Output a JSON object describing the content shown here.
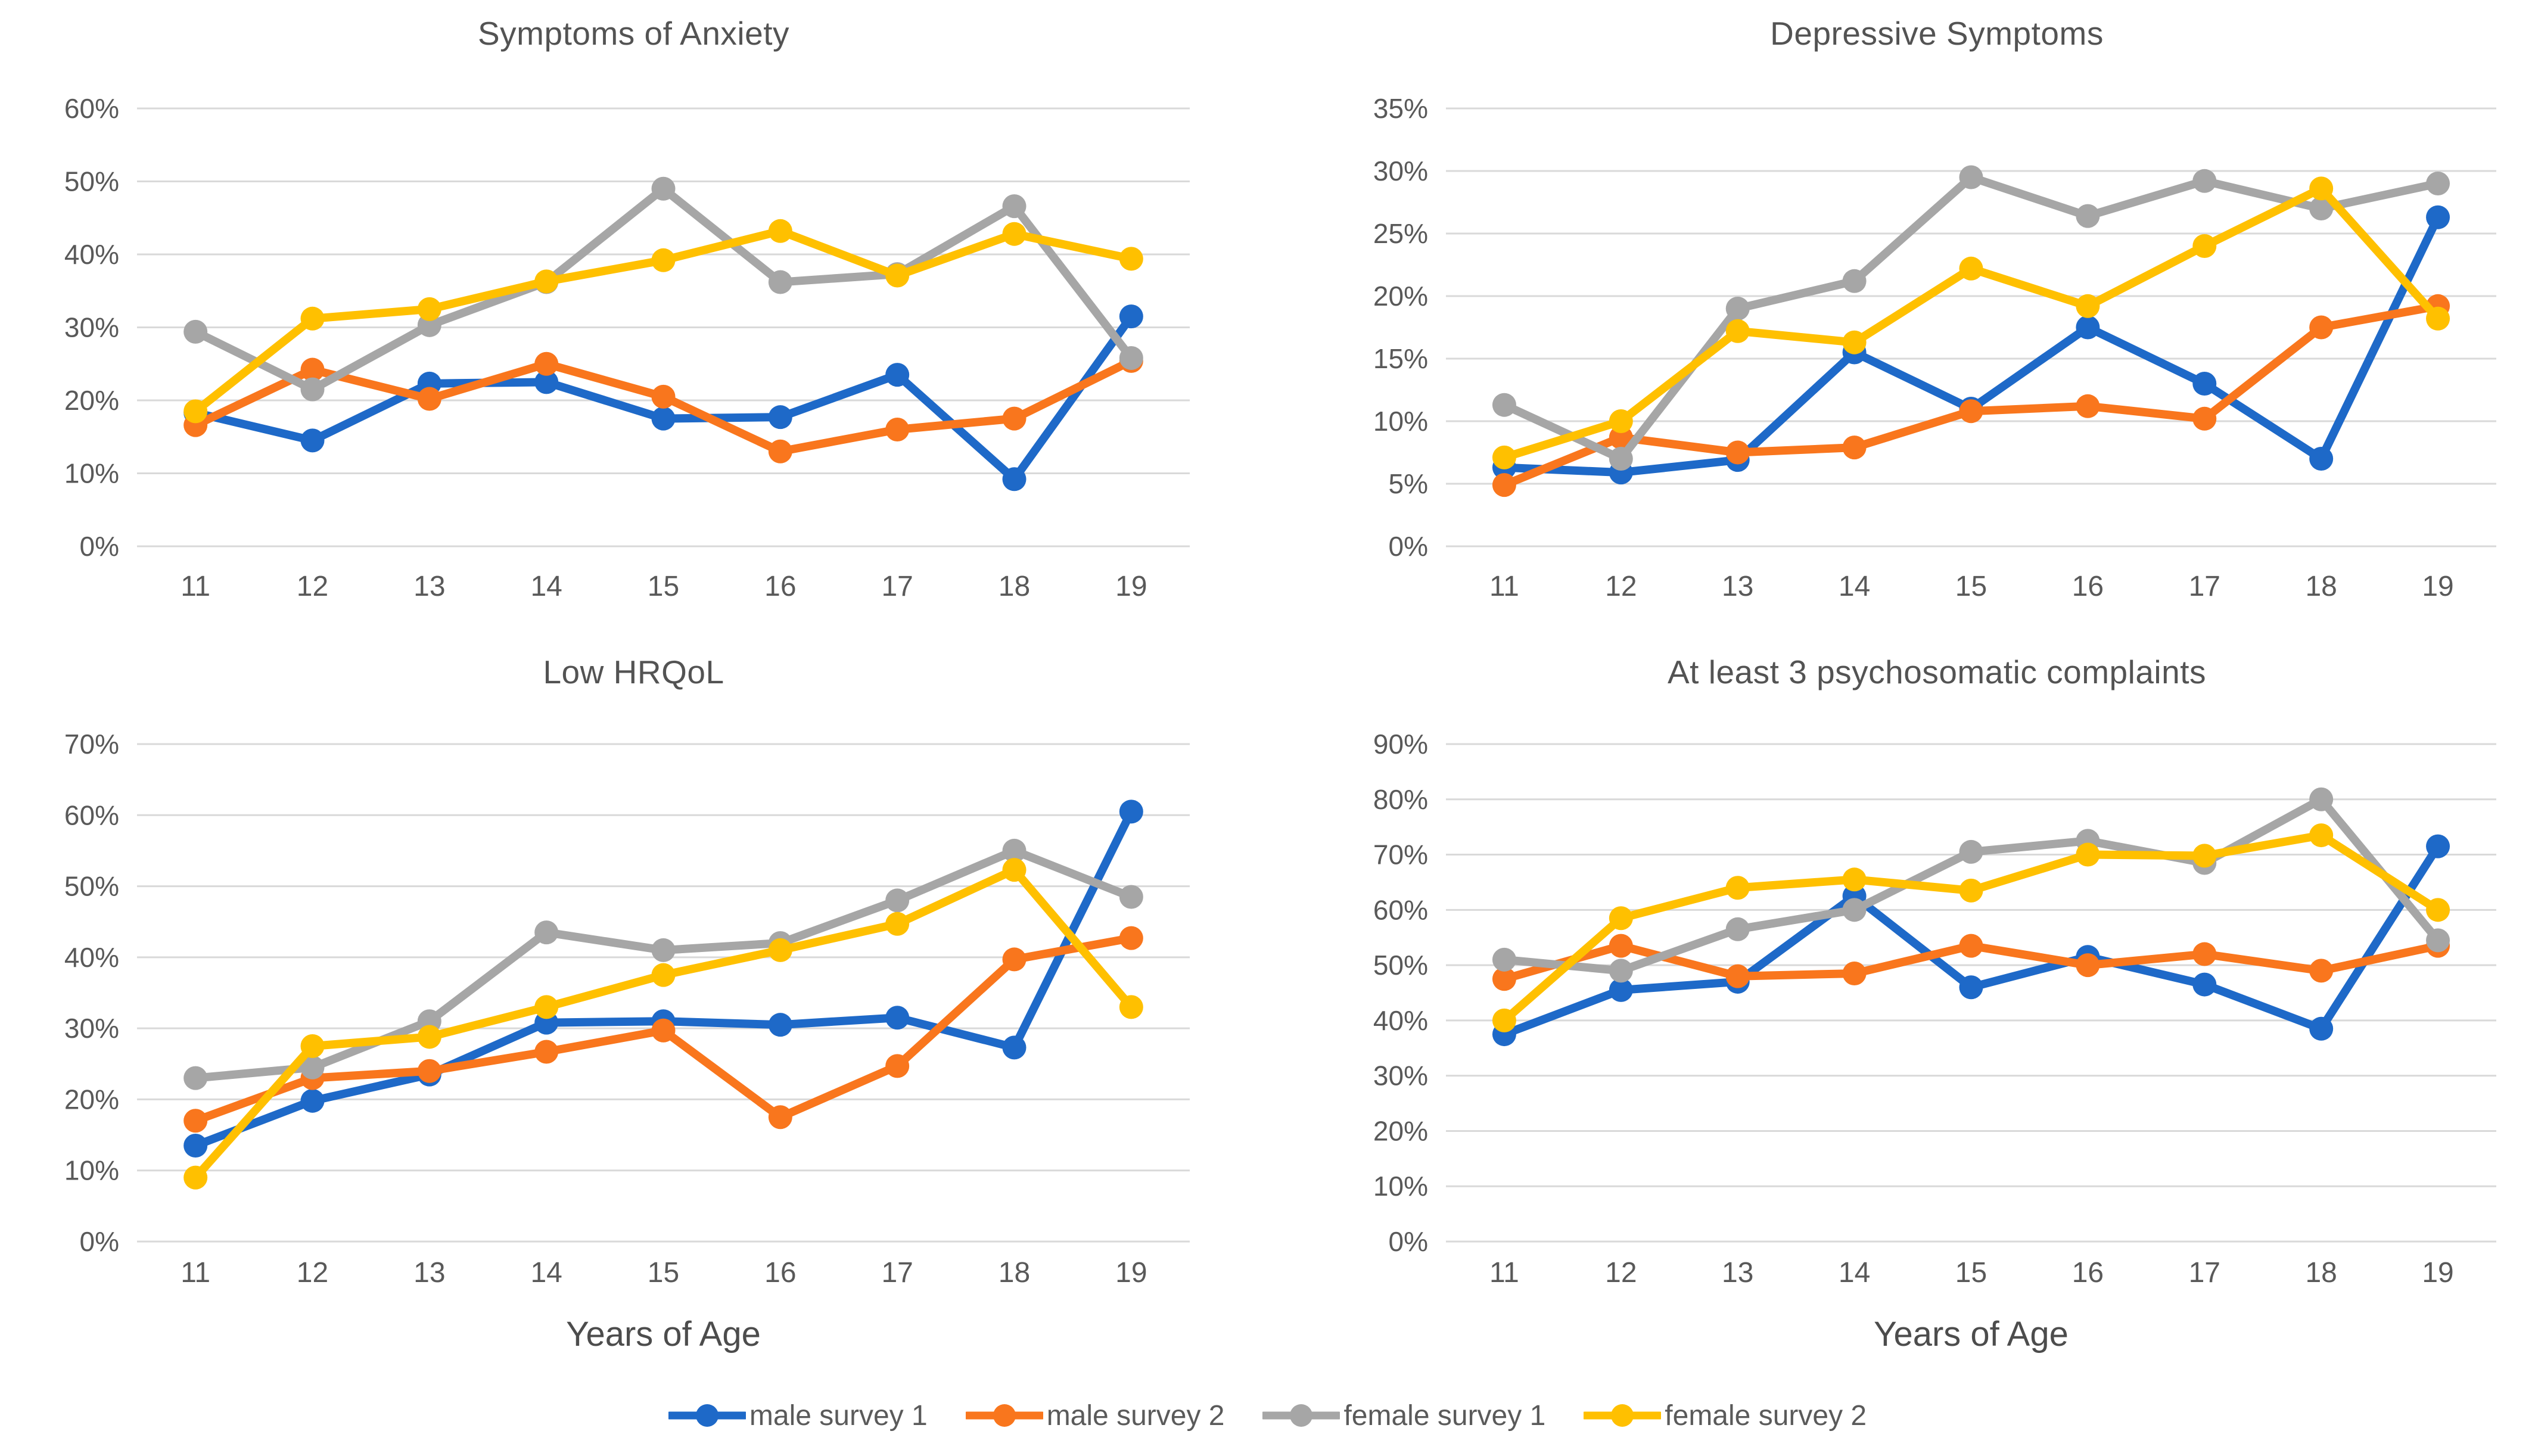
{
  "figure": {
    "background": "#ffffff",
    "x_axis_title": "Years of Age"
  },
  "colors": {
    "gridline": "#D9D9D9",
    "tick_text": "#595959",
    "title_text": "#535353",
    "series": {
      "male survey 1": "#1E69C8",
      "male survey 2": "#F9761D",
      "female survey 1": "#A6A6A6",
      "female survey 2": "#FFC000"
    }
  },
  "legend": {
    "items": [
      {
        "label": "male survey 1",
        "color": "#1E69C8"
      },
      {
        "label": "male survey 2",
        "color": "#F9761D"
      },
      {
        "label": "female survey 1",
        "color": "#A6A6A6"
      },
      {
        "label": "female survey 2",
        "color": "#FFC000"
      }
    ]
  },
  "chart_data": [
    {
      "type": "line",
      "title": "Symptoms of Anxiety",
      "categories": [
        "11",
        "12",
        "13",
        "14",
        "15",
        "16",
        "17",
        "18",
        "19"
      ],
      "y_axis": {
        "min": 0,
        "max": 60,
        "step": 10,
        "tick_labels": [
          "0%",
          "10%",
          "20%",
          "30%",
          "40%",
          "50%",
          "60%"
        ]
      },
      "series": [
        {
          "name": "male survey 1",
          "values": [
            18.3,
            14.5,
            22.3,
            22.5,
            17.5,
            17.7,
            23.5,
            9.2,
            31.5
          ]
        },
        {
          "name": "male survey 2",
          "values": [
            16.6,
            24.2,
            20.2,
            25.0,
            20.5,
            13.0,
            16.0,
            17.5,
            25.4
          ]
        },
        {
          "name": "female survey 1",
          "values": [
            29.4,
            21.5,
            30.3,
            36.2,
            49.0,
            36.2,
            37.3,
            46.6,
            25.8
          ]
        },
        {
          "name": "female survey 2",
          "values": [
            18.5,
            31.2,
            32.5,
            36.3,
            39.2,
            43.2,
            37.1,
            42.8,
            39.4
          ]
        }
      ]
    },
    {
      "type": "line",
      "title": "Depressive Symptoms",
      "categories": [
        "11",
        "12",
        "13",
        "14",
        "15",
        "16",
        "17",
        "18",
        "19"
      ],
      "y_axis": {
        "min": 0,
        "max": 35,
        "step": 5,
        "tick_labels": [
          "0%",
          "5%",
          "10%",
          "15%",
          "20%",
          "25%",
          "30%",
          "35%"
        ]
      },
      "series": [
        {
          "name": "male survey 1",
          "values": [
            6.3,
            5.9,
            6.9,
            15.5,
            11.0,
            17.5,
            13.0,
            7.0,
            26.3
          ]
        },
        {
          "name": "male survey 2",
          "values": [
            4.9,
            8.7,
            7.5,
            7.9,
            10.8,
            11.2,
            10.2,
            17.5,
            19.2
          ]
        },
        {
          "name": "female survey 1",
          "values": [
            11.3,
            7.0,
            19.0,
            21.2,
            29.5,
            26.4,
            29.2,
            27.0,
            29.0
          ]
        },
        {
          "name": "female survey 2",
          "values": [
            7.1,
            10.0,
            17.2,
            16.3,
            22.2,
            19.2,
            24.0,
            28.6,
            18.2
          ]
        }
      ]
    },
    {
      "type": "line",
      "title": "Low HRQoL",
      "x_axis_title": "Years of Age",
      "categories": [
        "11",
        "12",
        "13",
        "14",
        "15",
        "16",
        "17",
        "18",
        "19"
      ],
      "y_axis": {
        "min": 0,
        "max": 70,
        "step": 10,
        "tick_labels": [
          "0%",
          "10%",
          "20%",
          "30%",
          "40%",
          "50%",
          "60%",
          "70%"
        ]
      },
      "series": [
        {
          "name": "male survey 1",
          "values": [
            13.5,
            19.8,
            23.5,
            30.8,
            31.0,
            30.5,
            31.5,
            27.3,
            60.5
          ]
        },
        {
          "name": "male survey 2",
          "values": [
            17.0,
            23.0,
            24.0,
            26.7,
            29.7,
            17.5,
            24.7,
            39.7,
            42.7
          ]
        },
        {
          "name": "female survey 1",
          "values": [
            23.0,
            24.5,
            31.0,
            43.5,
            41.0,
            42.0,
            48.0,
            55.0,
            48.5
          ]
        },
        {
          "name": "female survey 2",
          "values": [
            9.0,
            27.5,
            28.8,
            33.0,
            37.5,
            41.0,
            44.7,
            52.3,
            33.0
          ]
        }
      ]
    },
    {
      "type": "line",
      "title": "At least 3 psychosomatic complaints",
      "x_axis_title": "Years of Age",
      "categories": [
        "11",
        "12",
        "13",
        "14",
        "15",
        "16",
        "17",
        "18",
        "19"
      ],
      "y_axis": {
        "min": 0,
        "max": 90,
        "step": 10,
        "tick_labels": [
          "0%",
          "10%",
          "20%",
          "30%",
          "40%",
          "50%",
          "60%",
          "70%",
          "80%",
          "90%"
        ]
      },
      "series": [
        {
          "name": "male survey 1",
          "values": [
            37.5,
            45.5,
            47.0,
            62.5,
            46.0,
            51.5,
            46.5,
            38.5,
            71.5
          ]
        },
        {
          "name": "male survey 2",
          "values": [
            47.5,
            53.5,
            48.0,
            48.5,
            53.5,
            50.0,
            52.0,
            49.0,
            53.5
          ]
        },
        {
          "name": "female survey 1",
          "values": [
            51.0,
            49.0,
            56.5,
            60.0,
            70.5,
            72.5,
            68.5,
            80.0,
            54.5
          ]
        },
        {
          "name": "female survey 2",
          "values": [
            40.0,
            58.5,
            64.0,
            65.5,
            63.5,
            70.0,
            69.8,
            73.5,
            60.0
          ]
        }
      ]
    }
  ]
}
